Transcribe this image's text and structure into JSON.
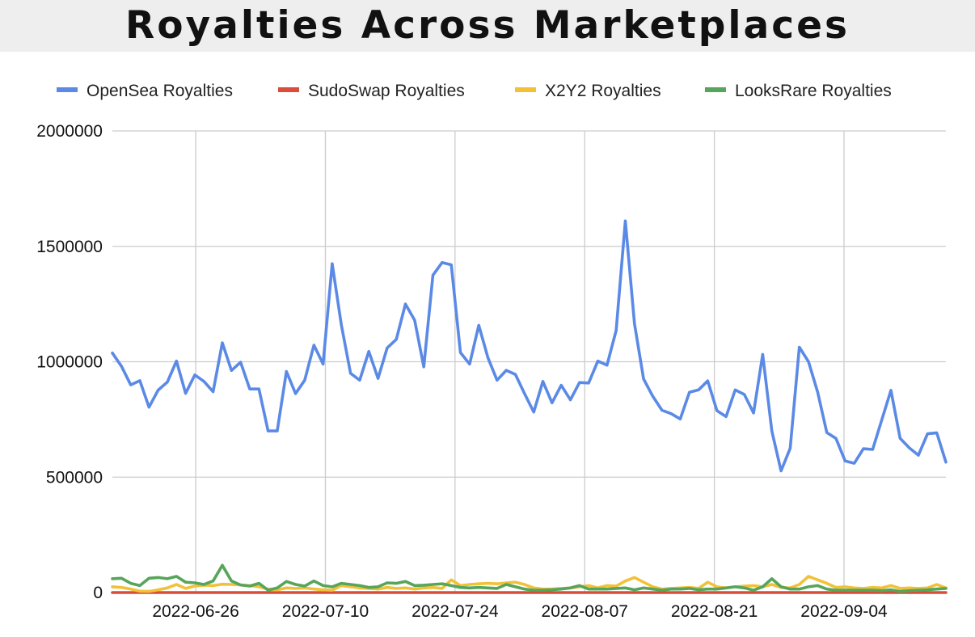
{
  "chart_data": {
    "type": "line",
    "title": "Royalties Across Marketplaces",
    "xlabel": "",
    "ylabel": "",
    "ylim": [
      0,
      2000000
    ],
    "yticks": [
      0,
      500000,
      1000000,
      1500000,
      2000000
    ],
    "x_start": "2022-06-17",
    "x_end": "2022-09-15",
    "xticks": [
      "2022-06-26",
      "2022-07-10",
      "2022-07-24",
      "2022-08-07",
      "2022-08-21",
      "2022-09-04"
    ],
    "grid": true,
    "legend_position": "top",
    "series": [
      {
        "name": "OpenSea Royalties",
        "color": "#5b8ae6",
        "values": [
          1038000,
          980000,
          900000,
          918000,
          803000,
          877000,
          912000,
          1003000,
          863000,
          943000,
          915000,
          870000,
          1082000,
          962000,
          998000,
          882000,
          882000,
          700000,
          700000,
          958000,
          862000,
          920000,
          1072000,
          990000,
          1425000,
          1160000,
          950000,
          920000,
          1045000,
          928000,
          1060000,
          1097000,
          1250000,
          1180000,
          978000,
          1375000,
          1430000,
          1420000,
          1040000,
          990000,
          1158000,
          1018000,
          920000,
          963000,
          945000,
          862000,
          782000,
          915000,
          822000,
          898000,
          835000,
          910000,
          908000,
          1003000,
          985000,
          1135000,
          1610000,
          1165000,
          925000,
          850000,
          790000,
          775000,
          752000,
          868000,
          878000,
          917000,
          788000,
          762000,
          878000,
          858000,
          778000,
          1032000,
          700000,
          527000,
          625000,
          1063000,
          1000000,
          868000,
          693000,
          668000,
          570000,
          560000,
          623000,
          620000,
          748000,
          876000,
          668000,
          627000,
          595000,
          688000,
          692000,
          565000
        ]
      },
      {
        "name": "SudoSwap Royalties",
        "color": "#db4c3a",
        "values": [
          0,
          0,
          0,
          0,
          0,
          0,
          0,
          0,
          0,
          0,
          0,
          0,
          0,
          0,
          0,
          0,
          0,
          0,
          0,
          0,
          0,
          0,
          0,
          0,
          0,
          0,
          0,
          0,
          0,
          0,
          0,
          0,
          0,
          0,
          0,
          0,
          0,
          0,
          0,
          0,
          0,
          0,
          0,
          0,
          0,
          0,
          0,
          0,
          0,
          0,
          0,
          0,
          0,
          0,
          0,
          0,
          0,
          0,
          0,
          0,
          0,
          0,
          0,
          0,
          0,
          0,
          0,
          0,
          0,
          0,
          0,
          0,
          0,
          0,
          0,
          0,
          0,
          0,
          0,
          0,
          0,
          0,
          0,
          0,
          0,
          0,
          0,
          0,
          0,
          0,
          0,
          0
        ]
      },
      {
        "name": "X2Y2 Royalties",
        "color": "#f2c13a",
        "values": [
          25000,
          22000,
          15000,
          6000,
          5000,
          12000,
          20000,
          35000,
          18000,
          28000,
          32000,
          30000,
          36000,
          35000,
          33000,
          30000,
          25000,
          15000,
          12000,
          20000,
          18000,
          20000,
          15000,
          12000,
          10000,
          30000,
          25000,
          20000,
          18000,
          15000,
          22000,
          18000,
          20000,
          15000,
          20000,
          22000,
          18000,
          55000,
          30000,
          35000,
          38000,
          40000,
          38000,
          42000,
          45000,
          35000,
          20000,
          15000,
          15000,
          18000,
          20000,
          25000,
          30000,
          20000,
          30000,
          28000,
          50000,
          65000,
          45000,
          25000,
          15000,
          18000,
          20000,
          22000,
          18000,
          45000,
          25000,
          20000,
          25000,
          28000,
          30000,
          25000,
          35000,
          22000,
          20000,
          35000,
          70000,
          55000,
          40000,
          22000,
          25000,
          20000,
          18000,
          22000,
          20000,
          30000,
          18000,
          20000,
          18000,
          20000,
          35000,
          20000
        ]
      },
      {
        "name": "LooksRare Royalties",
        "color": "#57a55a",
        "values": [
          60000,
          62000,
          40000,
          30000,
          62000,
          65000,
          60000,
          70000,
          45000,
          42000,
          35000,
          50000,
          118000,
          50000,
          33000,
          28000,
          40000,
          10000,
          20000,
          48000,
          35000,
          28000,
          50000,
          30000,
          25000,
          40000,
          35000,
          30000,
          22000,
          25000,
          42000,
          40000,
          48000,
          30000,
          32000,
          35000,
          38000,
          30000,
          22000,
          20000,
          22000,
          20000,
          18000,
          35000,
          25000,
          15000,
          10000,
          10000,
          12000,
          15000,
          20000,
          30000,
          15000,
          15000,
          15000,
          18000,
          20000,
          12000,
          20000,
          15000,
          10000,
          15000,
          15000,
          18000,
          12000,
          15000,
          15000,
          20000,
          25000,
          20000,
          10000,
          25000,
          60000,
          25000,
          15000,
          15000,
          25000,
          30000,
          15000,
          10000,
          10000,
          10000,
          10000,
          10000,
          8000,
          12000,
          5000,
          8000,
          10000,
          12000,
          15000,
          18000
        ]
      }
    ]
  }
}
